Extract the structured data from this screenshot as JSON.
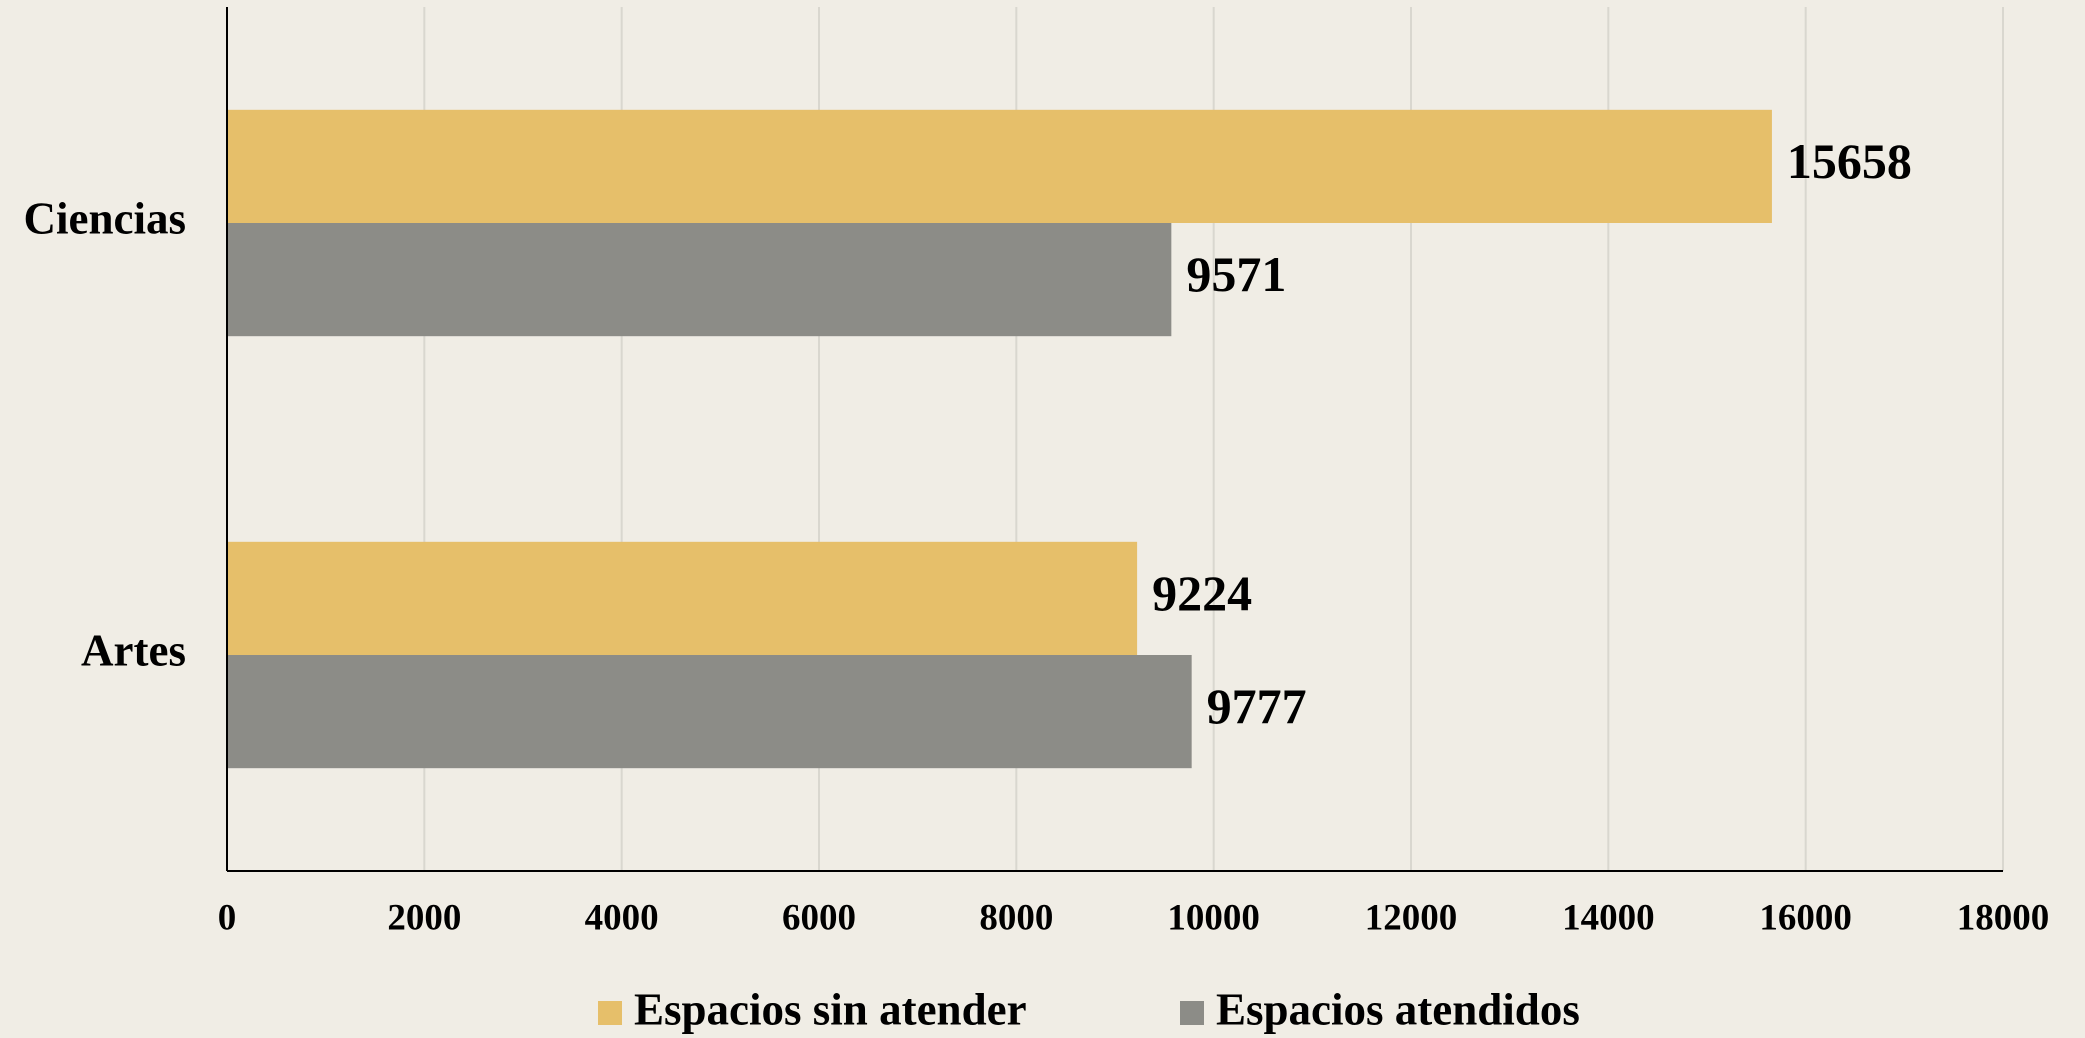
{
  "chart_data": {
    "type": "hbar",
    "categories": [
      "Ciencias",
      "Artes"
    ],
    "series": [
      {
        "name": "Espacios sin atender",
        "color": "#e6bf6a",
        "values": [
          15658,
          9224
        ]
      },
      {
        "name": "Espacios atendidos",
        "color": "#8c8c87",
        "values": [
          9571,
          9777
        ]
      }
    ],
    "xlim": [
      0,
      18000
    ],
    "xticks": [
      0,
      2000,
      4000,
      6000,
      8000,
      10000,
      12000,
      14000,
      16000,
      18000
    ],
    "grid": true,
    "legend": "bottom"
  }
}
